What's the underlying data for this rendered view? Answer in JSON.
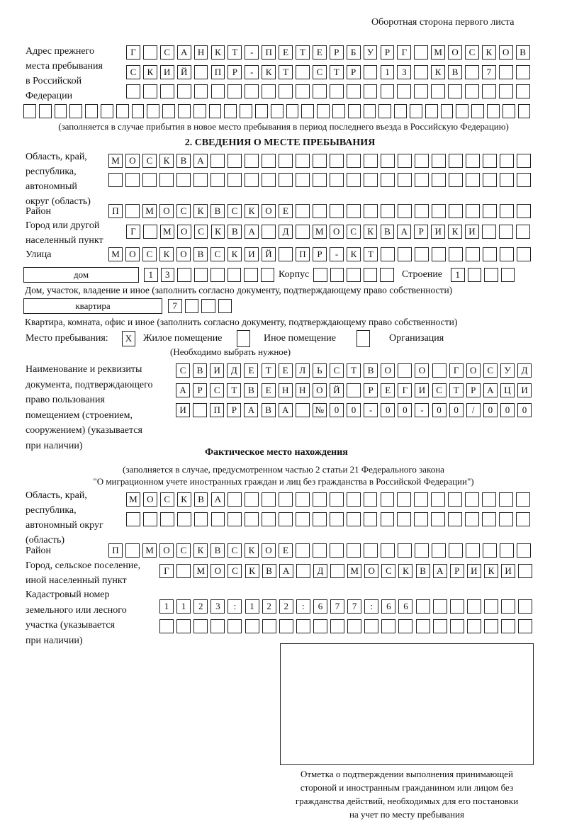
{
  "header": {
    "side_note": "Оборотная сторона первого листа"
  },
  "prev_address": {
    "label": [
      "Адрес прежнего",
      "места пребывания",
      "в Российской",
      "Федерации"
    ],
    "rows": [
      [
        "Г",
        "",
        "С",
        "А",
        "Н",
        "К",
        "Т",
        "-",
        "П",
        "Е",
        "Т",
        "Е",
        "Р",
        "Б",
        "У",
        "Р",
        "Г",
        "",
        "М",
        "О",
        "С",
        "К",
        "О",
        "В"
      ],
      [
        "С",
        "К",
        "И",
        "Й",
        "",
        "П",
        "Р",
        "-",
        "К",
        "Т",
        "",
        "С",
        "Т",
        "Р",
        "",
        "1",
        "3",
        "",
        "К",
        "В",
        "",
        "7",
        "",
        ""
      ],
      [
        "",
        "",
        "",
        "",
        "",
        "",
        "",
        "",
        "",
        "",
        "",
        "",
        "",
        "",
        "",
        "",
        "",
        "",
        "",
        "",
        "",
        "",
        "",
        ""
      ],
      [
        "",
        "",
        "",
        "",
        "",
        "",
        "",
        "",
        "",
        "",
        "",
        "",
        "",
        "",
        "",
        "",
        "",
        "",
        "",
        "",
        "",
        "",
        "",
        "",
        "",
        "",
        "",
        "",
        "",
        "",
        "",
        "",
        ""
      ]
    ],
    "note": "(заполняется в случае прибытия в новое место пребывания в период последнего въезда в Российскую Федерацию)"
  },
  "section2": {
    "title": "2. СВЕДЕНИЯ О МЕСТЕ ПРЕБЫВАНИЯ",
    "region_label": [
      "Область, край,",
      "республика,",
      "автономный",
      "округ (область)"
    ],
    "region_rows": [
      [
        "М",
        "О",
        "С",
        "К",
        "В",
        "А",
        "",
        "",
        "",
        "",
        "",
        "",
        "",
        "",
        "",
        "",
        "",
        "",
        "",
        "",
        "",
        "",
        "",
        "",
        ""
      ],
      [
        "",
        "",
        "",
        "",
        "",
        "",
        "",
        "",
        "",
        "",
        "",
        "",
        "",
        "",
        "",
        "",
        "",
        "",
        "",
        "",
        "",
        "",
        "",
        "",
        ""
      ]
    ],
    "district_label": "Район",
    "district_row": [
      "П",
      "",
      "М",
      "О",
      "С",
      "К",
      "В",
      "С",
      "К",
      "О",
      "Е",
      "",
      "",
      "",
      "",
      "",
      "",
      "",
      "",
      "",
      "",
      "",
      "",
      "",
      ""
    ],
    "city_label": [
      "Город или другой",
      "населенный пункт"
    ],
    "city_row": [
      "Г",
      "",
      "М",
      "О",
      "С",
      "К",
      "В",
      "А",
      "",
      "Д",
      "",
      "М",
      "О",
      "С",
      "К",
      "В",
      "А",
      "Р",
      "И",
      "К",
      "И",
      "",
      "",
      ""
    ],
    "street_label": "Улица",
    "street_row": [
      "М",
      "О",
      "С",
      "К",
      "О",
      "В",
      "С",
      "К",
      "И",
      "Й",
      "",
      "П",
      "Р",
      "-",
      "К",
      "Т",
      "",
      "",
      "",
      "",
      "",
      "",
      "",
      "",
      ""
    ],
    "house_type": "дом",
    "house_cells": [
      "1",
      "3",
      "",
      "",
      "",
      "",
      "",
      ""
    ],
    "korpus_label": "Корпус",
    "korpus_cells": [
      "",
      "",
      "",
      "",
      ""
    ],
    "building_label": "Строение",
    "building_cells": [
      "1",
      "",
      "",
      ""
    ],
    "house_note": "Дом, участок, владение и иное (заполнить согласно документу, подтверждающему право собственности)",
    "flat_type": "квартира",
    "flat_cells": [
      "7",
      "",
      "",
      ""
    ],
    "flat_note": "Квартира, комната, офис и иное (заполнить согласно документу, подтверждающему право собственности)",
    "stay_label": "Место пребывания:",
    "options": [
      {
        "label": "Жилое помещение",
        "mark": "X",
        "checked": true
      },
      {
        "label": "Иное помещение",
        "mark": "",
        "checked": false
      },
      {
        "label": "Организация",
        "mark": "",
        "checked": false
      }
    ],
    "options_note": "(Необходимо выбрать нужное)",
    "doc_label": [
      "Наименование и реквизиты",
      "документа, подтверждающего",
      "право пользования",
      "помещением (строением,",
      "сооружением) (указывается",
      "при наличии)"
    ],
    "doc_rows": [
      [
        "С",
        "В",
        "И",
        "Д",
        "Е",
        "Т",
        "Е",
        "Л",
        "Ь",
        "С",
        "Т",
        "В",
        "О",
        "",
        "О",
        "",
        "Г",
        "О",
        "С",
        "У",
        "Д"
      ],
      [
        "А",
        "Р",
        "С",
        "Т",
        "В",
        "Е",
        "Н",
        "Н",
        "О",
        "Й",
        "",
        "Р",
        "Е",
        "Г",
        "И",
        "С",
        "Т",
        "Р",
        "А",
        "Ц",
        "И"
      ],
      [
        "И",
        "",
        "П",
        "Р",
        "А",
        "В",
        "А",
        "",
        "№",
        "0",
        "0",
        "-",
        "0",
        "0",
        "-",
        "0",
        "0",
        "/",
        "0",
        "0",
        "0"
      ]
    ]
  },
  "actual": {
    "title": "Фактическое место нахождения",
    "note1": "(заполняется в случае, предусмотренном частью 2 статьи 21 Федерального закона",
    "note2": "\"О миграционном учете иностранных граждан и лиц без гражданства в Российской Федерации\")",
    "region_label": [
      "Область, край,",
      "республика,",
      "автономный округ",
      "(область)"
    ],
    "region_rows": [
      [
        "М",
        "О",
        "С",
        "К",
        "В",
        "А",
        "",
        "",
        "",
        "",
        "",
        "",
        "",
        "",
        "",
        "",
        "",
        "",
        "",
        "",
        "",
        "",
        "",
        ""
      ],
      [
        "",
        "",
        "",
        "",
        "",
        "",
        "",
        "",
        "",
        "",
        "",
        "",
        "",
        "",
        "",
        "",
        "",
        "",
        "",
        "",
        "",
        "",
        "",
        ""
      ]
    ],
    "district_label": "Район",
    "district_row": [
      "П",
      "",
      "М",
      "О",
      "С",
      "К",
      "В",
      "С",
      "К",
      "О",
      "Е",
      "",
      "",
      "",
      "",
      "",
      "",
      "",
      "",
      "",
      "",
      "",
      "",
      "",
      ""
    ],
    "city_label": [
      "Город, сельское поселение,",
      "иной населенный пункт"
    ],
    "city_row": [
      "Г",
      "",
      "М",
      "О",
      "С",
      "К",
      "В",
      "А",
      "",
      "Д",
      "",
      "М",
      "О",
      "С",
      "К",
      "В",
      "А",
      "Р",
      "И",
      "К",
      "И",
      ""
    ],
    "cadastre_label": [
      "Кадастровый номер",
      "земельного или лесного",
      "участка (указывается",
      "при наличии)"
    ],
    "cadastre_rows": [
      [
        "1",
        "1",
        "2",
        "3",
        ":",
        "1",
        "2",
        "2",
        ":",
        "6",
        "7",
        "7",
        ":",
        "6",
        "6",
        "",
        "",
        "",
        "",
        "",
        "",
        ""
      ],
      [
        "",
        "",
        "",
        "",
        "",
        "",
        "",
        "",
        "",
        "",
        "",
        "",
        "",
        "",
        "",
        "",
        "",
        "",
        "",
        "",
        "",
        ""
      ]
    ],
    "stamp_caption": [
      "Отметка о подтверждении выполнения принимающей",
      "стороной и иностранным гражданином или лицом без",
      "гражданства действий, необходимых для его постановки",
      "на учет по месту пребывания"
    ]
  }
}
